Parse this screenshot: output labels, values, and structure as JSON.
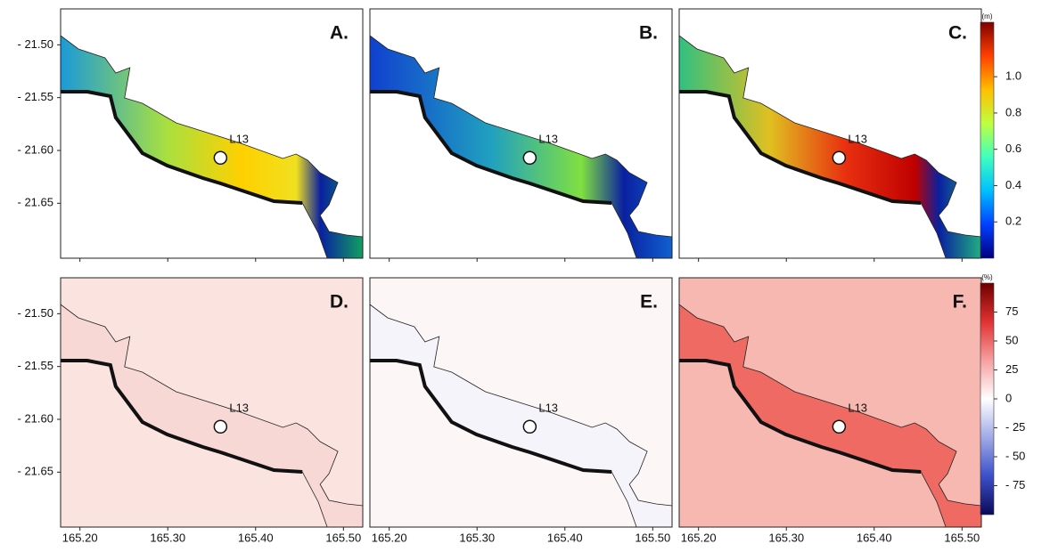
{
  "panels": [
    {
      "label": "A.",
      "station": "L13"
    },
    {
      "label": "B.",
      "station": "L13"
    },
    {
      "label": "C.",
      "station": "L13"
    },
    {
      "label": "D.",
      "station": "L13"
    },
    {
      "label": "E.",
      "station": "L13"
    },
    {
      "label": "F.",
      "station": "L13"
    }
  ],
  "station_position": {
    "lon": 165.36,
    "lat": -21.607
  },
  "lon_axis": {
    "range": [
      165.178,
      165.522
    ],
    "ticks": [
      {
        "value": 165.2,
        "label": "165.20"
      },
      {
        "value": 165.3,
        "label": "165.30"
      },
      {
        "value": 165.4,
        "label": "165.40"
      },
      {
        "value": 165.5,
        "label": "165.50"
      }
    ]
  },
  "lat_axis": {
    "range": [
      -21.702,
      -21.466
    ],
    "ticks": [
      {
        "value": -21.5,
        "label": "- 21.50"
      },
      {
        "value": -21.55,
        "label": "- 21.55"
      },
      {
        "value": -21.6,
        "label": "- 21.60"
      },
      {
        "value": -21.65,
        "label": "- 21.65"
      }
    ]
  },
  "colorbars": [
    {
      "unit": "(m)",
      "range": [
        0,
        1.3
      ],
      "colors": [
        "#00007f",
        "#0040ff",
        "#00bfff",
        "#40ffbf",
        "#bfff40",
        "#ffbf00",
        "#ff4000",
        "#7f0000"
      ],
      "ticks": [
        0.2,
        0.4,
        0.6,
        0.8,
        {
          "value": 1,
          "label": "1.0"
        }
      ]
    },
    {
      "unit": "(%)",
      "range": [
        -100,
        100
      ],
      "colors": [
        "#0a0a5a",
        "#3c50c8",
        "#a0aae6",
        "#ffffff",
        "#f5a0a0",
        "#e03232",
        "#6e0000"
      ],
      "ticks": [
        {
          "value": -75,
          "label": "- 75"
        },
        {
          "value": -50,
          "label": "- 50"
        },
        {
          "value": -25,
          "label": "- 25"
        },
        0,
        25,
        50,
        75
      ]
    }
  ]
}
